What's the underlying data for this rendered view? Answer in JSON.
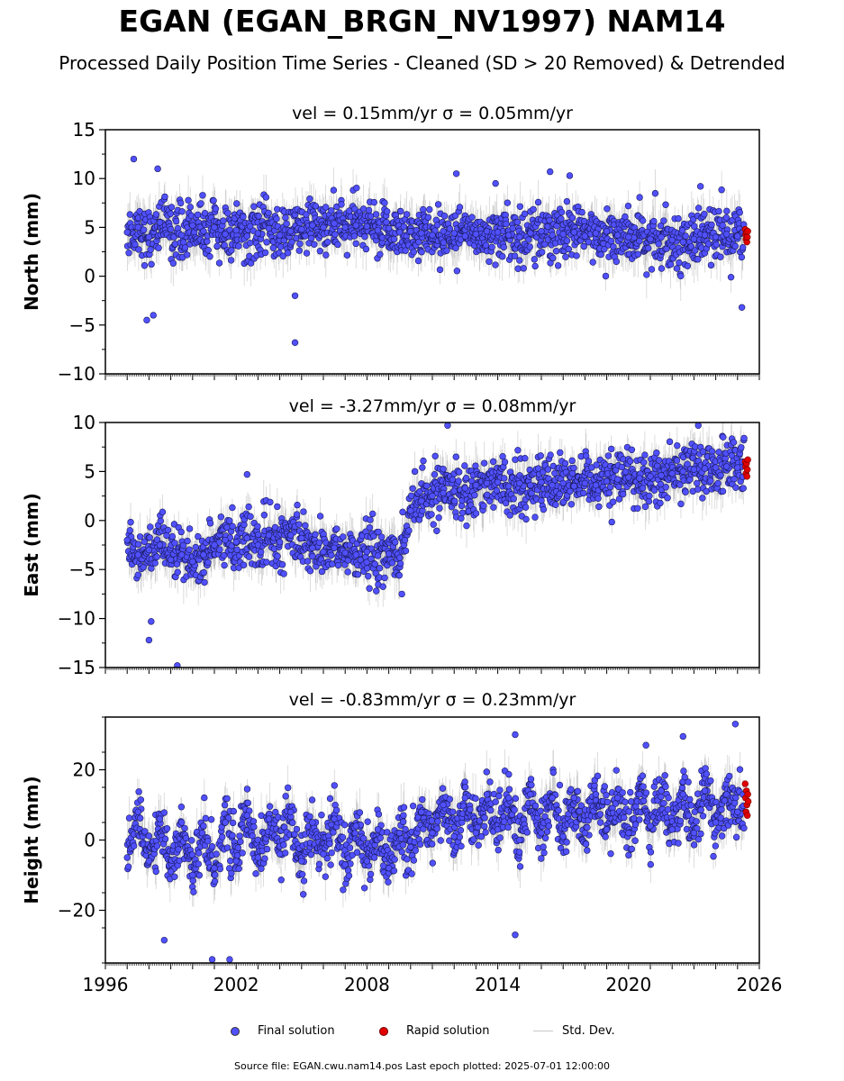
{
  "title": "EGAN (EGAN_BRGN_NV1997) NAM14",
  "subtitle": "Processed Daily Position Time Series - Cleaned (SD > 20 Removed) & Detrended",
  "legend": {
    "final": "Final solution",
    "rapid": "Rapid solution",
    "std": "Std. Dev."
  },
  "source": "Source file: EGAN.cwu.nam14.pos  Last epoch plotted: 2025-07-01 12:00:00",
  "colors": {
    "final_fill": "#5050ff",
    "final_edge": "#1a1a5a",
    "rapid_fill": "#e00000",
    "std_dev": "#a0a0a0",
    "axis": "#000000"
  },
  "chart_data": [
    {
      "type": "scatter",
      "title": "vel = 0.15mm/yr   σ = 0.05mm/yr",
      "ylabel": "North (mm)",
      "xlim": [
        1996,
        2026
      ],
      "ylim": [
        -10,
        15
      ],
      "yticks": [
        -10,
        -5,
        0,
        5,
        10,
        15
      ],
      "xticks": [
        1996,
        2002,
        2008,
        2014,
        2020,
        2026
      ],
      "xtick_labels_shown": false,
      "series": [
        {
          "name": "Final solution",
          "x": [
            1997.0,
            1997.5,
            1998.0,
            1998.5,
            1999.0,
            1999.5,
            2000.0,
            2000.5,
            2001.0,
            2001.5,
            2002.0,
            2002.5,
            2003.0,
            2003.5,
            2004.0,
            2004.5,
            2005.0,
            2005.5,
            2006.0,
            2006.5,
            2007.0,
            2007.5,
            2008.0,
            2008.5,
            2009.0,
            2009.5,
            2010.0,
            2010.5,
            2011.0,
            2011.5,
            2012.0,
            2012.5,
            2013.0,
            2013.5,
            2014.0,
            2014.5,
            2015.0,
            2015.5,
            2016.0,
            2016.5,
            2017.0,
            2017.5,
            2018.0,
            2018.5,
            2019.0,
            2019.5,
            2020.0,
            2020.5,
            2021.0,
            2021.5,
            2022.0,
            2022.5,
            2023.0,
            2023.5,
            2024.0,
            2024.5,
            2025.0
          ],
          "y": [
            4.5,
            5.0,
            4.0,
            5.5,
            4.8,
            4.2,
            5.2,
            4.6,
            5.0,
            4.3,
            4.7,
            4.1,
            4.4,
            4.9,
            4.2,
            4.6,
            4.8,
            5.2,
            5.0,
            5.4,
            5.0,
            5.2,
            5.1,
            4.7,
            4.9,
            4.5,
            4.6,
            4.4,
            4.2,
            4.6,
            4.4,
            4.1,
            4.3,
            4.6,
            4.5,
            4.2,
            4.0,
            4.4,
            4.6,
            4.2,
            4.3,
            4.5,
            4.1,
            4.4,
            4.6,
            4.2,
            4.0,
            3.6,
            3.8,
            4.0,
            3.7,
            3.5,
            3.8,
            4.2,
            4.0,
            4.3,
            4.1
          ],
          "outliers_x": [
            1997.3,
            1997.9,
            1998.2,
            1998.4,
            2004.7,
            2004.7,
            2012.1,
            2013.9,
            2016.4,
            2017.3,
            2023.3,
            2025.2
          ],
          "outliers_y": [
            12.0,
            -4.5,
            -4.0,
            11.0,
            -6.8,
            -2.0,
            10.5,
            9.5,
            10.7,
            10.3,
            9.2,
            -3.2
          ]
        },
        {
          "name": "Rapid solution",
          "x": [
            2025.35,
            2025.37,
            2025.39,
            2025.41,
            2025.43,
            2025.45,
            2025.47
          ],
          "y": [
            4.8,
            4.3,
            3.8,
            4.5,
            3.5,
            4.0,
            4.6
          ]
        }
      ]
    },
    {
      "type": "scatter",
      "title": "vel = -3.27mm/yr   σ = 0.08mm/yr",
      "ylabel": "East (mm)",
      "xlim": [
        1996,
        2026
      ],
      "ylim": [
        -15,
        10
      ],
      "yticks": [
        -15,
        -10,
        -5,
        0,
        5,
        10
      ],
      "xticks": [
        1996,
        2002,
        2008,
        2014,
        2020,
        2026
      ],
      "xtick_labels_shown": false,
      "series": [
        {
          "name": "Final solution",
          "x": [
            1997.0,
            1997.5,
            1998.0,
            1998.5,
            1999.0,
            1999.5,
            2000.0,
            2000.5,
            2001.0,
            2001.5,
            2002.0,
            2002.5,
            2003.0,
            2003.5,
            2004.0,
            2004.5,
            2005.0,
            2005.5,
            2006.0,
            2006.5,
            2007.0,
            2007.5,
            2008.0,
            2008.5,
            2009.0,
            2009.5,
            2010.0,
            2010.5,
            2011.0,
            2011.5,
            2012.0,
            2012.5,
            2013.0,
            2013.5,
            2014.0,
            2014.5,
            2015.0,
            2015.5,
            2016.0,
            2016.5,
            2017.0,
            2017.5,
            2018.0,
            2018.5,
            2019.0,
            2019.5,
            2020.0,
            2020.5,
            2021.0,
            2021.5,
            2022.0,
            2022.5,
            2023.0,
            2023.5,
            2024.0,
            2024.5,
            2025.0
          ],
          "y": [
            -2.0,
            -3.5,
            -3.0,
            -2.5,
            -4.0,
            -3.5,
            -4.2,
            -3.5,
            -2.5,
            -2.0,
            -2.2,
            -1.8,
            -2.5,
            -1.5,
            -2.2,
            -1.5,
            -1.8,
            -2.8,
            -3.2,
            -2.8,
            -3.3,
            -3.5,
            -3.2,
            -3.6,
            -3.4,
            -3.8,
            1.0,
            2.0,
            2.5,
            2.8,
            3.0,
            3.3,
            3.6,
            3.8,
            3.9,
            3.5,
            3.8,
            3.6,
            3.9,
            3.6,
            3.8,
            3.5,
            3.8,
            3.6,
            4.0,
            4.2,
            4.4,
            4.3,
            4.5,
            4.6,
            4.8,
            5.0,
            5.2,
            5.3,
            5.4,
            5.5,
            5.4
          ],
          "outliers_x": [
            1998.0,
            1998.1,
            1999.3,
            2002.5,
            2009.6,
            2011.7,
            2023.2,
            2025.3
          ],
          "outliers_y": [
            -12.2,
            -10.3,
            -14.8,
            4.7,
            -7.5,
            9.7,
            9.7,
            8.4
          ]
        },
        {
          "name": "Rapid solution",
          "x": [
            2025.35,
            2025.37,
            2025.39,
            2025.41,
            2025.43,
            2025.45,
            2025.47
          ],
          "y": [
            6.0,
            5.5,
            4.8,
            5.8,
            4.5,
            5.2,
            6.2
          ]
        }
      ]
    },
    {
      "type": "scatter",
      "title": "vel = -0.83mm/yr   σ = 0.23mm/yr",
      "ylabel": "Height (mm)",
      "xlim": [
        1996,
        2026
      ],
      "ylim": [
        -35,
        35
      ],
      "yticks": [
        -20,
        0,
        20
      ],
      "xticks": [
        1996,
        2002,
        2008,
        2014,
        2020,
        2026
      ],
      "xtick_labels": [
        "1996",
        "2002",
        "2008",
        "2014",
        "2020",
        "2026"
      ],
      "xtick_labels_shown": true,
      "series": [
        {
          "name": "Final solution",
          "x": [
            1997.0,
            1997.5,
            1998.0,
            1998.5,
            1999.0,
            1999.5,
            2000.0,
            2000.5,
            2001.0,
            2001.5,
            2002.0,
            2002.5,
            2003.0,
            2003.5,
            2004.0,
            2004.5,
            2005.0,
            2005.5,
            2006.0,
            2006.5,
            2007.0,
            2007.5,
            2008.0,
            2008.5,
            2009.0,
            2009.5,
            2010.0,
            2010.5,
            2011.0,
            2011.5,
            2012.0,
            2012.5,
            2013.0,
            2013.5,
            2014.0,
            2014.5,
            2015.0,
            2015.5,
            2016.0,
            2016.5,
            2017.0,
            2017.5,
            2018.0,
            2018.5,
            2019.0,
            2019.5,
            2020.0,
            2020.5,
            2021.0,
            2021.5,
            2022.0,
            2022.5,
            2023.0,
            2023.5,
            2024.0,
            2024.5,
            2025.0
          ],
          "y": [
            -5.0,
            8.0,
            -6.0,
            6.0,
            -9.0,
            5.0,
            -10.0,
            4.0,
            -8.0,
            5.0,
            -6.0,
            7.0,
            -5.0,
            6.0,
            -4.0,
            8.0,
            -6.0,
            5.0,
            -4.0,
            6.0,
            -7.0,
            4.0,
            -6.0,
            3.0,
            -8.0,
            2.0,
            -2.0,
            8.0,
            2.0,
            10.0,
            1.0,
            12.0,
            2.0,
            13.0,
            3.0,
            12.0,
            0.0,
            13.0,
            2.0,
            12.0,
            1.0,
            12.0,
            2.0,
            13.0,
            3.0,
            12.0,
            2.0,
            13.0,
            4.0,
            14.0,
            3.0,
            13.0,
            2.0,
            14.0,
            5.0,
            13.0,
            8.0
          ],
          "outliers_x": [
            1998.7,
            2000.9,
            2001.7,
            2014.8,
            2014.8,
            2024.9,
            2022.5,
            2020.8
          ],
          "outliers_y": [
            -28.5,
            -34.0,
            -34.0,
            30.0,
            -27.0,
            33.0,
            29.5,
            27.0
          ]
        },
        {
          "name": "Rapid solution",
          "x": [
            2025.35,
            2025.37,
            2025.39,
            2025.41,
            2025.43,
            2025.45,
            2025.47,
            2025.49
          ],
          "y": [
            16.0,
            12.0,
            8.0,
            14.0,
            10.0,
            7.0,
            13.0,
            11.0
          ]
        }
      ]
    }
  ]
}
